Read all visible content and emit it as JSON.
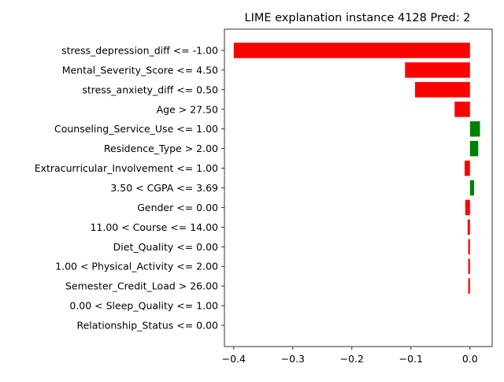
{
  "chart_data": {
    "type": "bar",
    "orientation": "horizontal",
    "title": "LIME explanation instance 4128 Pred: 2",
    "xlabel": "",
    "ylabel": "",
    "xlim": [
      -0.4158,
      0.0376
    ],
    "xticks": [
      -0.4,
      -0.3,
      -0.2,
      -0.1,
      0.0
    ],
    "xtick_labels": [
      "−0.4",
      "−0.3",
      "−0.2",
      "−0.1",
      "0.0"
    ],
    "grid": false,
    "positive_color": "#008000",
    "negative_color": "#ff0000",
    "categories": [
      "stress_depression_diff <= -1.00",
      "Mental_Severity_Score <= 4.50",
      "stress_anxiety_diff <= 0.50",
      "Age > 27.50",
      "Counseling_Service_Use <= 1.00",
      "Residence_Type > 2.00",
      "Extracurricular_Involvement <= 1.00",
      "3.50 < CGPA <= 3.69",
      "Gender <= 0.00",
      "11.00 < Course <= 14.00",
      "Diet_Quality <= 0.00",
      "1.00 < Physical_Activity <= 2.00",
      "Semester_Credit_Load > 26.00",
      "0.00 < Sleep_Quality <= 1.00",
      "Relationship_Status <= 0.00"
    ],
    "values": [
      -0.4,
      -0.11,
      -0.093,
      -0.026,
      0.017,
      0.014,
      -0.009,
      0.007,
      -0.008,
      -0.004,
      -0.003,
      -0.003,
      -0.003,
      0.0,
      0.0
    ]
  }
}
